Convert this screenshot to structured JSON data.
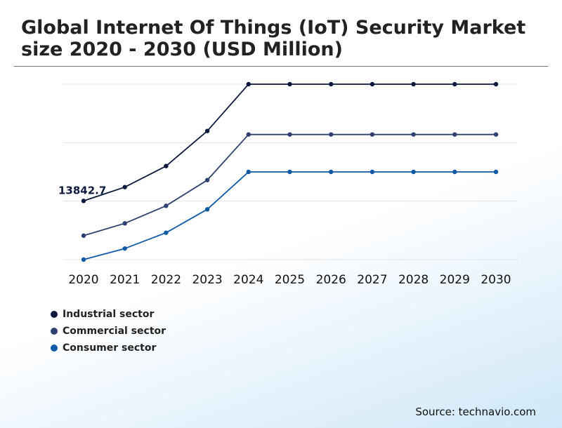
{
  "chart_data": {
    "type": "line",
    "title": "Global Internet Of Things (IoT) Security Market size 2020 - 2030 (USD Million)",
    "categories": [
      "2020",
      "2021",
      "2022",
      "2023",
      "2024",
      "2025",
      "2026",
      "2027",
      "2028",
      "2029",
      "2030"
    ],
    "series": [
      {
        "name": "Industrial sector",
        "color": "#0c1a3e",
        "values": [
          13842.7,
          16200,
          19800,
          25800,
          33800,
          33800,
          33800,
          33800,
          33800,
          33800,
          33800
        ]
      },
      {
        "name": "Commercial sector",
        "color": "#2d4170",
        "values": [
          7900,
          10000,
          13000,
          17400,
          25200,
          25200,
          25200,
          25200,
          25200,
          25200,
          25200
        ]
      },
      {
        "name": "Consumer sector",
        "color": "#0f5aa6",
        "values": [
          3800,
          5700,
          8400,
          12400,
          18800,
          18800,
          18800,
          18800,
          18800,
          18800,
          18800
        ]
      }
    ],
    "annotation": {
      "series_index": 0,
      "point_index": 0,
      "label": "13842.7"
    },
    "ylim": [
      3800,
      33800
    ],
    "grid": true,
    "xlabel": "",
    "ylabel": ""
  },
  "source": "Source: technavio.com"
}
